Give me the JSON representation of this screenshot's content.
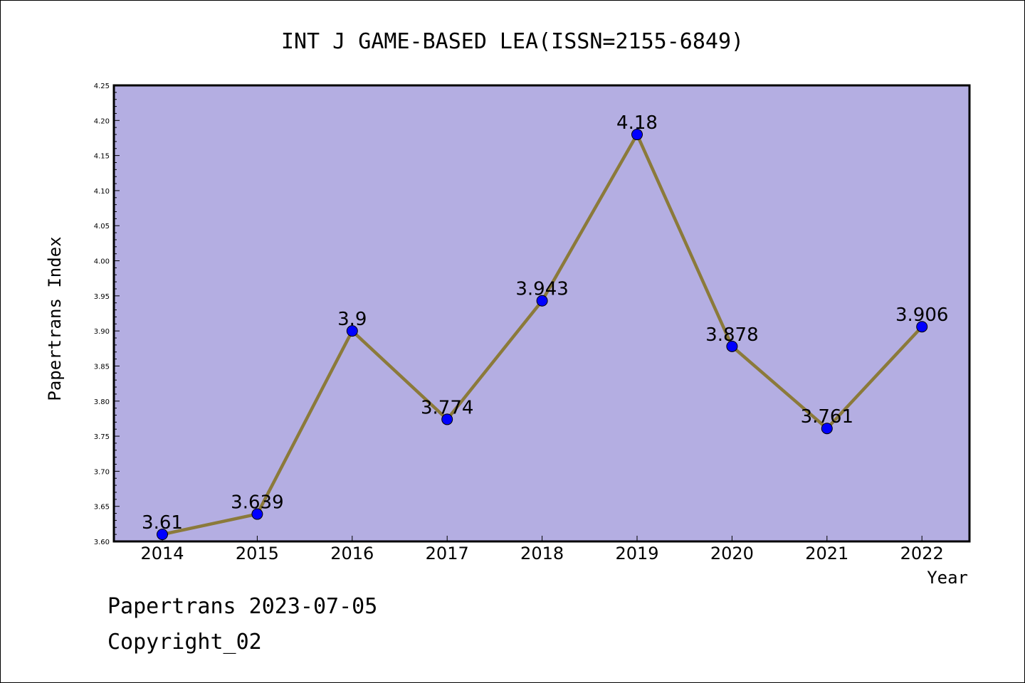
{
  "chart_data": {
    "type": "line",
    "title": "INT J GAME-BASED LEA(ISSN=2155-6849)",
    "xlabel": "Year",
    "ylabel": "Papertrans Index",
    "categories": [
      "2014",
      "2015",
      "2016",
      "2017",
      "2018",
      "2019",
      "2020",
      "2021",
      "2022"
    ],
    "series": [
      {
        "values": [
          3.61,
          3.639,
          3.9,
          3.774,
          3.943,
          4.18,
          3.878,
          3.761,
          3.906
        ],
        "labels": [
          "3.61",
          "3.639",
          "3.9",
          "3.774",
          "3.943",
          "4.18",
          "3.878",
          "3.761",
          "3.906"
        ]
      }
    ],
    "ylim": [
      3.6,
      4.25
    ],
    "yticks": [
      "3.60",
      "3.65",
      "3.70",
      "3.75",
      "3.80",
      "3.85",
      "3.90",
      "3.95",
      "4.00",
      "4.05",
      "4.10",
      "4.15",
      "4.20",
      "4.25"
    ],
    "grid": false,
    "legend": "none",
    "colors": {
      "plot_background": "#b4aee2",
      "line": "#8b7a3a",
      "marker": "#0000ff"
    }
  },
  "footer": {
    "line1": "Papertrans 2023-07-05",
    "line2": "Copyright_02"
  }
}
